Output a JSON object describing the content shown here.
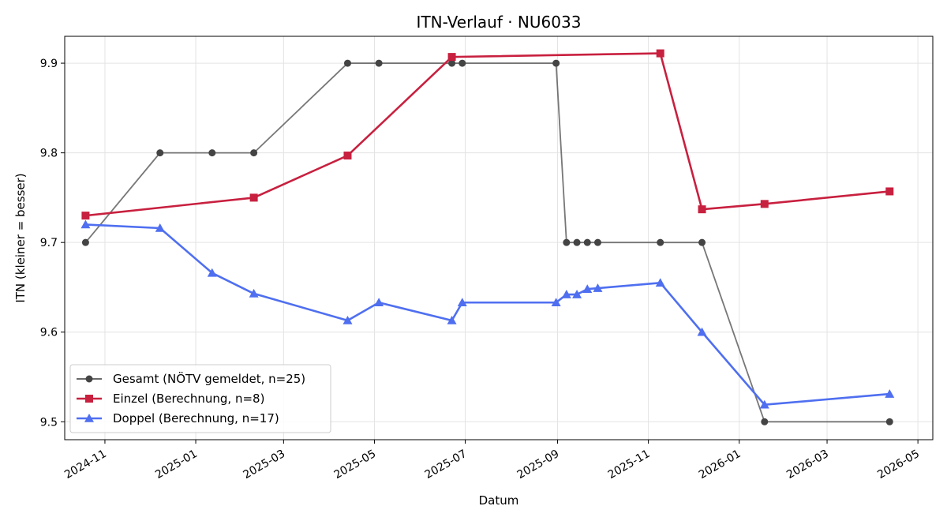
{
  "chart_data": {
    "type": "line",
    "title": "ITN-Verlauf · NU6033",
    "xlabel": "Datum",
    "ylabel": "ITN  (kleiner = besser)",
    "xlim": [
      "2024-10-05",
      "2026-05-11"
    ],
    "ylim": [
      9.48,
      9.93
    ],
    "y_ticks": [
      9.5,
      9.6,
      9.7,
      9.8,
      9.9
    ],
    "x_ticks": [
      "2024-11-01",
      "2025-01-01",
      "2025-03-01",
      "2025-05-01",
      "2025-07-01",
      "2025-09-01",
      "2025-11-01",
      "2026-01-01",
      "2026-03-01",
      "2026-05-01"
    ],
    "x_tick_labels": [
      "2024-11",
      "2025-01",
      "2025-03",
      "2025-05",
      "2025-07",
      "2025-09",
      "2025-11",
      "2026-01",
      "2026-03",
      "2026-05"
    ],
    "grid": true,
    "legend_position": "lower-left",
    "series": [
      {
        "name": "Gesamt (NÖTV gemeldet, n=25)",
        "color": "#555555",
        "marker": "circle",
        "points": [
          {
            "x": "2024-10-19",
            "y": 9.7
          },
          {
            "x": "2024-12-08",
            "y": 9.8
          },
          {
            "x": "2025-01-12",
            "y": 9.8
          },
          {
            "x": "2025-02-09",
            "y": 9.8
          },
          {
            "x": "2025-04-13",
            "y": 9.9
          },
          {
            "x": "2025-05-04",
            "y": 9.9
          },
          {
            "x": "2025-06-22",
            "y": 9.9
          },
          {
            "x": "2025-06-29",
            "y": 9.9
          },
          {
            "x": "2025-08-31",
            "y": 9.9
          },
          {
            "x": "2025-09-07",
            "y": 9.7
          },
          {
            "x": "2025-09-14",
            "y": 9.7
          },
          {
            "x": "2025-09-21",
            "y": 9.7
          },
          {
            "x": "2025-09-28",
            "y": 9.7
          },
          {
            "x": "2025-11-09",
            "y": 9.7
          },
          {
            "x": "2025-12-07",
            "y": 9.7
          },
          {
            "x": "2026-01-18",
            "y": 9.5
          },
          {
            "x": "2026-04-12",
            "y": 9.5
          }
        ]
      },
      {
        "name": "Einzel (Berechnung, n=8)",
        "color": "#c8203f",
        "marker": "square",
        "points": [
          {
            "x": "2024-10-19",
            "y": 9.73
          },
          {
            "x": "2025-02-09",
            "y": 9.75
          },
          {
            "x": "2025-04-13",
            "y": 9.797
          },
          {
            "x": "2025-06-22",
            "y": 9.907
          },
          {
            "x": "2025-11-09",
            "y": 9.911
          },
          {
            "x": "2025-12-07",
            "y": 9.737
          },
          {
            "x": "2026-01-18",
            "y": 9.743
          },
          {
            "x": "2026-04-12",
            "y": 9.757
          }
        ]
      },
      {
        "name": "Doppel (Berechnung, n=17)",
        "color": "#4f6ff0",
        "marker": "triangle",
        "points": [
          {
            "x": "2024-10-19",
            "y": 9.72
          },
          {
            "x": "2024-12-08",
            "y": 9.716
          },
          {
            "x": "2025-01-12",
            "y": 9.666
          },
          {
            "x": "2025-02-09",
            "y": 9.643
          },
          {
            "x": "2025-04-13",
            "y": 9.613
          },
          {
            "x": "2025-05-04",
            "y": 9.633
          },
          {
            "x": "2025-06-22",
            "y": 9.613
          },
          {
            "x": "2025-06-29",
            "y": 9.633
          },
          {
            "x": "2025-08-31",
            "y": 9.633
          },
          {
            "x": "2025-09-07",
            "y": 9.642
          },
          {
            "x": "2025-09-14",
            "y": 9.642
          },
          {
            "x": "2025-09-21",
            "y": 9.648
          },
          {
            "x": "2025-09-28",
            "y": 9.649
          },
          {
            "x": "2025-11-09",
            "y": 9.655
          },
          {
            "x": "2025-12-07",
            "y": 9.6
          },
          {
            "x": "2026-01-18",
            "y": 9.519
          },
          {
            "x": "2026-04-12",
            "y": 9.531
          }
        ]
      }
    ]
  }
}
